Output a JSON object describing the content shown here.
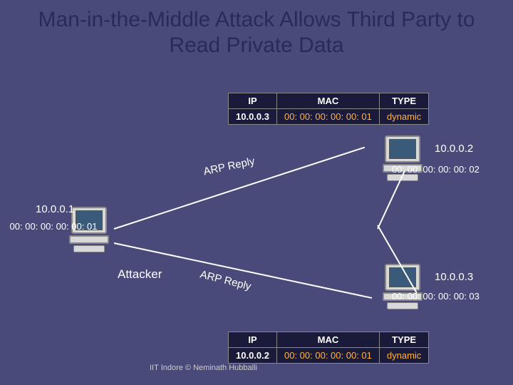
{
  "title": "Man-in-the-Middle Attack Allows Third Party to Read Private Data",
  "table1": {
    "headers": {
      "ip": "IP",
      "mac": "MAC",
      "type": "TYPE"
    },
    "row": {
      "ip": "10.0.0.3",
      "mac": "00: 00: 00: 00: 00: 01",
      "type": "dynamic"
    }
  },
  "table2": {
    "headers": {
      "ip": "IP",
      "mac": "MAC",
      "type": "TYPE"
    },
    "row": {
      "ip": "10.0.0.2",
      "mac": "00: 00: 00: 00: 00: 01",
      "type": "dynamic"
    }
  },
  "attacker": {
    "ip": "10.0.0.1",
    "mac": "00: 00: 00: 00: 00: 01",
    "label": "Attacker"
  },
  "victim_top": {
    "ip": "10.0.0.2",
    "mac": "00: 00: 00: 00: 00: 02"
  },
  "victim_bottom": {
    "ip": "10.0.0.3",
    "mac": "00: 00: 00: 00: 00: 03"
  },
  "arp_reply_up": "ARP Reply",
  "arp_reply_down": "ARP Reply",
  "footer": "IIT Indore © Neminath Hubballi",
  "colors": {
    "background": "#4a4a7a",
    "title_color": "#2a2a5a",
    "table_bg": "#1a1a3a",
    "text_color": "#ffffff",
    "accent_color": "#ffb347"
  }
}
